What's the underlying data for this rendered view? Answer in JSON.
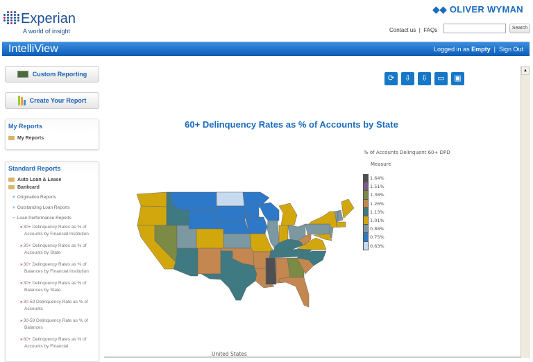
{
  "header": {
    "brand": "Experian",
    "brand_tagline": "A world of insight",
    "partner_logo": "OLIVER WYMAN",
    "contact_label": "Contact us",
    "separator": "|",
    "faqs_label": "FAQs",
    "search_placeholder": "",
    "search_button": "Search"
  },
  "appbar": {
    "title": "IntelliView",
    "logged_in_prefix": "Logged in as",
    "user": "Empty",
    "sign_out": "Sign Out"
  },
  "sidebar": {
    "custom_reporting": "Custom Reporting",
    "create_report": "Create Your Report",
    "my_reports": {
      "title": "My Reports",
      "items": [
        "My Reports"
      ]
    },
    "standard_reports": {
      "title": "Standard Reports",
      "categories": [
        "Auto Loan & Lease",
        "Bankcard"
      ],
      "groups": [
        "Origination Reports",
        "Outstanding Loan Reports",
        "Loan Performance Reports"
      ],
      "reports": [
        "30+ Delinquency Rates as % of Accounts by Financial Institution",
        "30+ Delinquency Rates as % of Accounts by State",
        "30+ Delinquency Rates as % of Balances by Financial Institution",
        "30+ Delinquency Rates as % of Balances by State",
        "30-59 Delinquency Rate as % of Accounts",
        "30-59 Delinquency Rate as % of Balances",
        "60+ Delinquency Rates as % of Accounts by Financial"
      ]
    }
  },
  "toolbar": {
    "icons": [
      "refresh-icon",
      "export-excel-icon",
      "export-pdf-icon",
      "print-icon",
      "save-icon"
    ]
  },
  "chart_data": {
    "type": "choropleth",
    "title": "60+ Delinquency Rates as % of Accounts by State",
    "legend_title": "% of Accounts Delinquent 60+ DPD",
    "legend_subtitle": "Measure",
    "legend_placement": "right",
    "footer_label": "United States",
    "buckets": [
      {
        "label": "1.64%",
        "color": "#4f4f52"
      },
      {
        "label": "1.51%",
        "color": "#7a5a8a"
      },
      {
        "label": "1.38%",
        "color": "#7b8a44"
      },
      {
        "label": "1.26%",
        "color": "#c4874f"
      },
      {
        "label": "1.13%",
        "color": "#3f7981"
      },
      {
        "label": "1.01%",
        "color": "#d2a70e"
      },
      {
        "label": "0.88%",
        "color": "#7c98a1"
      },
      {
        "label": "0.75%",
        "color": "#2e79c7"
      },
      {
        "label": "0.63%",
        "color": "#c7daef"
      }
    ],
    "states": {
      "WA": "1.01%",
      "OR": "1.01%",
      "CA": "1.01%",
      "NV": "1.38%",
      "ID": "1.13%",
      "MT": "0.75%",
      "WY": "0.75%",
      "UT": "0.88%",
      "CO": "1.01%",
      "AZ": "1.13%",
      "NM": "1.26%",
      "ND": "0.63%",
      "SD": "0.75%",
      "NE": "0.75%",
      "KS": "0.88%",
      "OK": "1.26%",
      "TX": "1.13%",
      "MN": "0.75%",
      "IA": "0.75%",
      "WI": "0.75%",
      "MO": "1.01%",
      "AR": "1.26%",
      "LA": "1.26%",
      "IL": "0.88%",
      "MI": "1.01%",
      "IN": "1.01%",
      "OH": "0.88%",
      "KY": "1.13%",
      "TN": "1.13%",
      "MS": "1.64%",
      "AL": "1.26%",
      "GA": "1.38%",
      "FL": "1.26%",
      "SC": "1.26%",
      "NC": "1.13%",
      "VA": "1.01%",
      "WV": "1.26%",
      "PA": "0.88%",
      "NY": "1.01%",
      "VT": "0.88%",
      "NH": "0.88%",
      "ME": "1.01%",
      "MA": "1.01%",
      "NJ": "0.88%",
      "MD": "1.01%"
    }
  }
}
